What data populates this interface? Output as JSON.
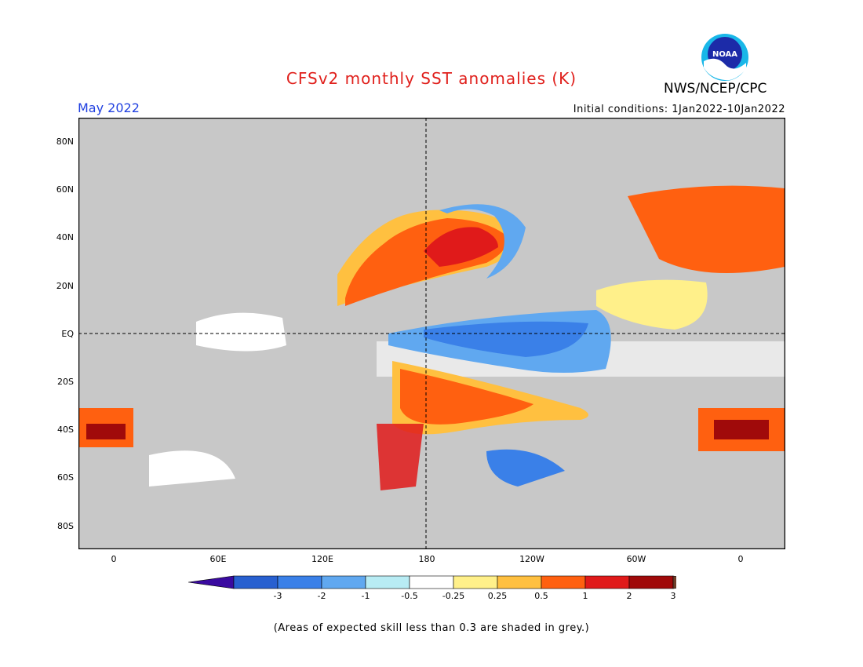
{
  "title": "CFSv2 monthly SST anomalies (K)",
  "agency": "NWS/NCEP/CPC",
  "logo_text": "NOAA",
  "period": "May 2022",
  "initial_conditions": "Initial conditions: 1Jan2022-10Jan2022",
  "lat_labels": [
    "80N",
    "60N",
    "40N",
    "20N",
    "EQ",
    "20S",
    "40S",
    "60S",
    "80S"
  ],
  "lon_labels": [
    "0",
    "60E",
    "120E",
    "180",
    "120W",
    "60W",
    "0"
  ],
  "colorbar": {
    "labels": [
      "-3",
      "-2",
      "-1",
      "-0.5",
      "-0.25",
      "0.25",
      "0.5",
      "1",
      "2",
      "3"
    ],
    "colors": [
      "#3a0aa0",
      "#2860d0",
      "#3a80e8",
      "#60a8f0",
      "#b8ecf4",
      "#ffffff",
      "#fff08a",
      "#ffc040",
      "#ff6010",
      "#e01a1a",
      "#a00a0a",
      "#6e3f2a"
    ]
  },
  "colors": {
    "land": "#ffffff",
    "ocean_low_skill": "#c8c8c8",
    "title": "#e0201c",
    "period": "#1f3fe0"
  },
  "note": "(Areas of expected skill less than 0.3 are shaded in grey.)"
}
